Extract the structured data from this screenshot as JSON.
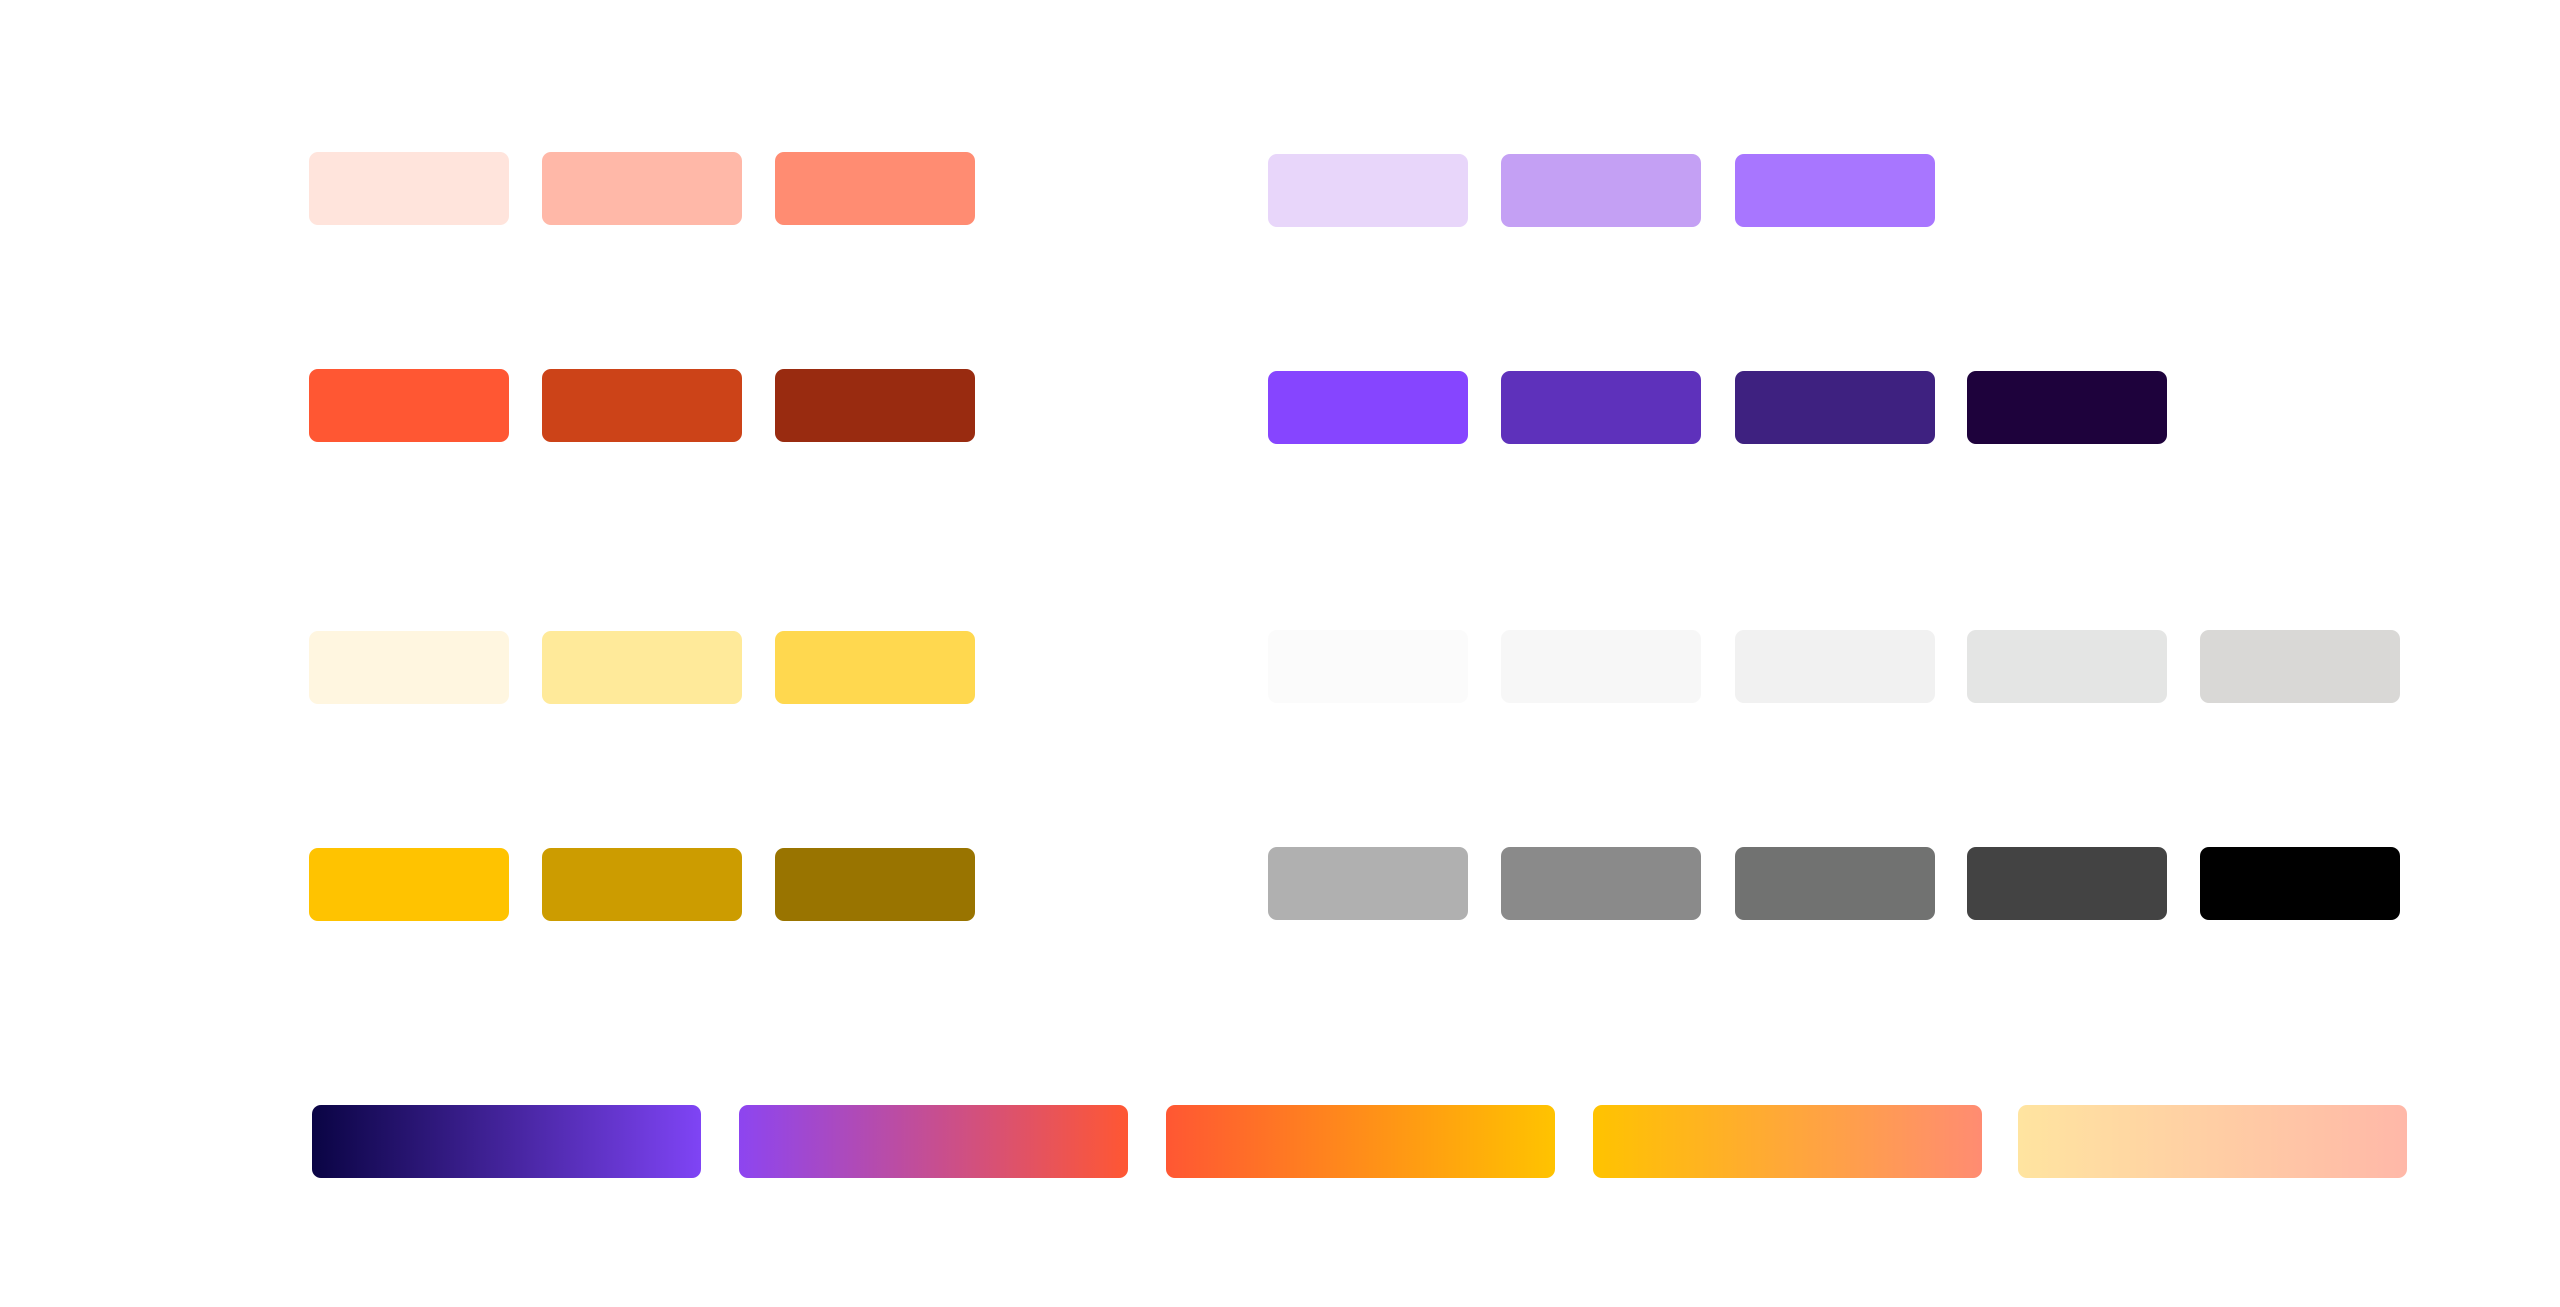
{
  "palettes": {
    "coral_light": [
      "#FFE4DC",
      "#FFB8A8",
      "#FF8C72"
    ],
    "coral_dark": [
      "#FF5733",
      "#CC4318",
      "#992B10"
    ],
    "yellow_light": [
      "#FFF6E0",
      "#FFEA9A",
      "#FFD84F"
    ],
    "yellow_dark": [
      "#FFC300",
      "#CC9C00",
      "#997400"
    ],
    "purple_light": [
      "#E8D6FA",
      "#C4A0F4",
      "#A876FF"
    ],
    "purple_dark": [
      "#8645FF",
      "#5E31BB",
      "#3E2180",
      "#1E023C"
    ],
    "gray_light": [
      "#FBFBFB",
      "#F7F7F7",
      "#F1F1F1",
      "#E4E5E4",
      "#D9D8D6"
    ],
    "gray_dark": [
      "#B0B0B0",
      "#8A8A8A",
      "#717271",
      "#434343",
      "#000000"
    ]
  },
  "gradients": [
    [
      "#0A0444",
      "#7F44F5"
    ],
    [
      "#8D45F0",
      "#FF5733"
    ],
    [
      "#FF5733",
      "#FFC300"
    ],
    [
      "#FFC300",
      "#FF8C72"
    ],
    [
      "#FFE4A0",
      "#FFB8A8"
    ]
  ]
}
